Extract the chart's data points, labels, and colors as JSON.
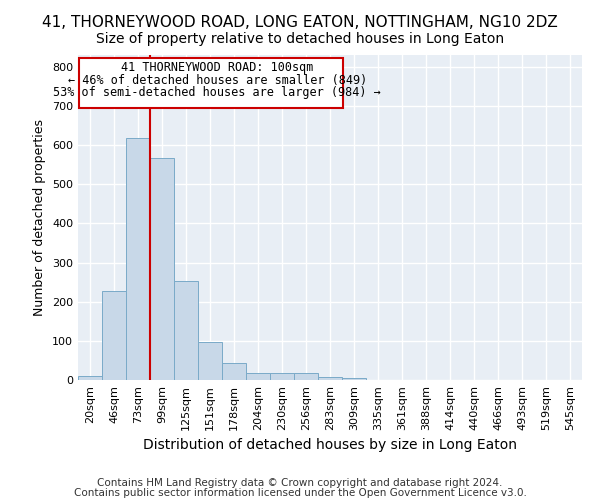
{
  "title": "41, THORNEYWOOD ROAD, LONG EATON, NOTTINGHAM, NG10 2DZ",
  "subtitle": "Size of property relative to detached houses in Long Eaton",
  "xlabel": "Distribution of detached houses by size in Long Eaton",
  "ylabel": "Number of detached properties",
  "bar_color": "#c8d8e8",
  "bar_edge_color": "#7aaac8",
  "background_color": "#e8eef5",
  "grid_color": "#ffffff",
  "annotation_box_color": "#cc0000",
  "property_line_color": "#cc0000",
  "categories": [
    "20sqm",
    "46sqm",
    "73sqm",
    "99sqm",
    "125sqm",
    "151sqm",
    "178sqm",
    "204sqm",
    "230sqm",
    "256sqm",
    "283sqm",
    "309sqm",
    "335sqm",
    "361sqm",
    "388sqm",
    "414sqm",
    "440sqm",
    "466sqm",
    "493sqm",
    "519sqm",
    "545sqm"
  ],
  "values": [
    10,
    228,
    617,
    567,
    253,
    97,
    44,
    19,
    19,
    18,
    8,
    5,
    0,
    0,
    0,
    0,
    0,
    0,
    0,
    0,
    0
  ],
  "ylim": [
    0,
    830
  ],
  "yticks": [
    0,
    100,
    200,
    300,
    400,
    500,
    600,
    700,
    800
  ],
  "property_bin_index": 3,
  "annotation_text_line1": "41 THORNEYWOOD ROAD: 100sqm",
  "annotation_text_line2": "← 46% of detached houses are smaller (849)",
  "annotation_text_line3": "53% of semi-detached houses are larger (984) →",
  "footnote_line1": "Contains HM Land Registry data © Crown copyright and database right 2024.",
  "footnote_line2": "Contains public sector information licensed under the Open Government Licence v3.0.",
  "title_fontsize": 11,
  "subtitle_fontsize": 10,
  "xlabel_fontsize": 10,
  "ylabel_fontsize": 9,
  "tick_fontsize": 8,
  "annotation_fontsize": 8.5,
  "footnote_fontsize": 7.5
}
